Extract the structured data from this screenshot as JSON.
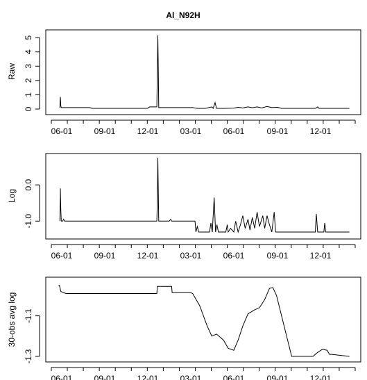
{
  "chart_data": [
    {
      "type": "line",
      "title": "Al_N92H",
      "ylabel": "Raw",
      "xlabel": "",
      "x_ticks": [
        "06-01",
        "09-01",
        "12-01",
        "03-01",
        "06-01",
        "09-01",
        "12-01"
      ],
      "y_ticks": [
        "0",
        "1",
        "2",
        "3",
        "4",
        "5"
      ],
      "ylim": [
        0,
        5.2
      ],
      "series": [
        {
          "points": [
            [
              "05-28",
              0.1
            ],
            [
              "05-29",
              0.85
            ],
            [
              "05-30",
              0.2
            ],
            [
              "05-31",
              0.1
            ],
            [
              "06-10",
              0.1
            ],
            [
              "07-31",
              0.1
            ],
            [
              "08-05",
              0.05
            ],
            [
              "08-20",
              0.05
            ],
            [
              "10-10",
              0.05
            ],
            [
              "11-30",
              0.05
            ],
            [
              "12-05",
              0.15
            ],
            [
              "12-15",
              0.15
            ],
            [
              "12-20",
              0.15
            ],
            [
              "12-21",
              2.7
            ],
            [
              "12-22",
              5.15
            ],
            [
              "12-23",
              2.7
            ],
            [
              "12-24",
              0.1
            ],
            [
              "12-27",
              0.1
            ],
            [
              "01-20",
              0.1
            ],
            [
              "02-10",
              0.1
            ],
            [
              "03-05",
              0.1
            ],
            [
              "03-15",
              0.05
            ],
            [
              "04-01",
              0.05
            ],
            [
              "04-15",
              0.15
            ],
            [
              "04-18",
              0.05
            ],
            [
              "04-22",
              0.45
            ],
            [
              "04-25",
              0.05
            ],
            [
              "05-10",
              0.05
            ],
            [
              "06-01",
              0.07
            ],
            [
              "06-10",
              0.12
            ],
            [
              "06-20",
              0.08
            ],
            [
              "07-01",
              0.15
            ],
            [
              "07-10",
              0.09
            ],
            [
              "07-20",
              0.15
            ],
            [
              "07-30",
              0.08
            ],
            [
              "08-10",
              0.18
            ],
            [
              "08-20",
              0.1
            ],
            [
              "09-01",
              0.12
            ],
            [
              "09-10",
              0.05
            ],
            [
              "10-01",
              0.05
            ],
            [
              "11-20",
              0.05
            ],
            [
              "11-25",
              0.15
            ],
            [
              "11-28",
              0.05
            ],
            [
              "12-31",
              0.05
            ],
            [
              "01-31",
              0.05
            ]
          ]
        }
      ]
    },
    {
      "type": "line",
      "title": "",
      "ylabel": "Log",
      "xlabel": "",
      "x_ticks": [
        "06-01",
        "09-01",
        "12-01",
        "03-01",
        "06-01",
        "09-01",
        "12-01"
      ],
      "y_ticks": [
        "-1.0",
        "0.0"
      ],
      "ylim": [
        -1.32,
        0.75
      ],
      "series": [
        {
          "points": [
            [
              "05-28",
              -1.0
            ],
            [
              "05-29",
              -0.35
            ],
            [
              "05-29",
              -0.1
            ],
            [
              "05-30",
              -0.7
            ],
            [
              "05-31",
              -1.0
            ],
            [
              "06-03",
              -1.0
            ],
            [
              "06-05",
              -0.95
            ],
            [
              "06-07",
              -1.0
            ],
            [
              "06-10",
              -1.0
            ],
            [
              "12-20",
              -1.0
            ],
            [
              "12-21",
              -0.45
            ],
            [
              "12-22",
              0.75
            ],
            [
              "12-23",
              -0.2
            ],
            [
              "12-24",
              -1.0
            ],
            [
              "01-15",
              -1.0
            ],
            [
              "01-18",
              -0.95
            ],
            [
              "01-20",
              -1.0
            ],
            [
              "03-10",
              -1.0
            ],
            [
              "03-12",
              -1.3
            ],
            [
              "03-15",
              -1.15
            ],
            [
              "03-18",
              -1.3
            ],
            [
              "04-10",
              -1.3
            ],
            [
              "04-13",
              -1.05
            ],
            [
              "04-16",
              -1.3
            ],
            [
              "04-20",
              -0.35
            ],
            [
              "04-23",
              -1.3
            ],
            [
              "04-26",
              -1.1
            ],
            [
              "04-29",
              -1.3
            ],
            [
              "05-15",
              -1.3
            ],
            [
              "05-18",
              -1.1
            ],
            [
              "05-20",
              -1.3
            ],
            [
              "05-25",
              -1.2
            ],
            [
              "06-01",
              -1.3
            ],
            [
              "06-05",
              -1.0
            ],
            [
              "06-10",
              -1.3
            ],
            [
              "06-15",
              -1.1
            ],
            [
              "06-20",
              -0.85
            ],
            [
              "06-25",
              -1.2
            ],
            [
              "07-01",
              -0.95
            ],
            [
              "07-05",
              -1.25
            ],
            [
              "07-10",
              -0.9
            ],
            [
              "07-15",
              -1.2
            ],
            [
              "07-20",
              -0.75
            ],
            [
              "07-25",
              -1.15
            ],
            [
              "08-01",
              -0.85
            ],
            [
              "08-05",
              -1.2
            ],
            [
              "08-10",
              -0.85
            ],
            [
              "08-15",
              -1.1
            ],
            [
              "08-20",
              -1.3
            ],
            [
              "08-25",
              -0.75
            ],
            [
              "08-28",
              -1.3
            ],
            [
              "09-15",
              -1.3
            ],
            [
              "11-20",
              -1.3
            ],
            [
              "11-22",
              -0.8
            ],
            [
              "11-25",
              -1.3
            ],
            [
              "12-08",
              -1.3
            ],
            [
              "12-10",
              -1.05
            ],
            [
              "12-12",
              -1.3
            ],
            [
              "01-31",
              -1.3
            ]
          ]
        }
      ]
    },
    {
      "type": "line",
      "title": "",
      "ylabel": "30-obs avg log",
      "xlabel": "",
      "x_ticks": [
        "06-01",
        "09-01",
        "12-01",
        "03-01",
        "06-01",
        "09-01",
        "12-01"
      ],
      "y_ticks": [
        "-1.3",
        "-1.1"
      ],
      "ylim": [
        -1.3,
        -0.93
      ],
      "series": [
        {
          "points": [
            [
              "05-25",
              -0.95
            ],
            [
              "05-27",
              -0.95
            ],
            [
              "05-30",
              -0.98
            ],
            [
              "06-10",
              -0.99
            ],
            [
              "12-20",
              -0.99
            ],
            [
              "12-21",
              -0.955
            ],
            [
              "01-20",
              -0.955
            ],
            [
              "01-21",
              -0.985
            ],
            [
              "02-28",
              -0.985
            ],
            [
              "03-05",
              -0.99
            ],
            [
              "03-20",
              -1.05
            ],
            [
              "04-05",
              -1.15
            ],
            [
              "04-15",
              -1.2
            ],
            [
              "04-25",
              -1.19
            ],
            [
              "05-10",
              -1.22
            ],
            [
              "05-20",
              -1.26
            ],
            [
              "06-01",
              -1.27
            ],
            [
              "06-10",
              -1.22
            ],
            [
              "06-20",
              -1.15
            ],
            [
              "07-01",
              -1.09
            ],
            [
              "07-15",
              -1.07
            ],
            [
              "07-25",
              -1.06
            ],
            [
              "08-05",
              -1.02
            ],
            [
              "08-15",
              -0.965
            ],
            [
              "08-22",
              -0.96
            ],
            [
              "08-30",
              -1.0
            ],
            [
              "09-15",
              -1.15
            ],
            [
              "10-01",
              -1.3
            ],
            [
              "11-15",
              -1.3
            ],
            [
              "11-25",
              -1.28
            ],
            [
              "12-05",
              -1.265
            ],
            [
              "12-15",
              -1.27
            ],
            [
              "12-20",
              -1.29
            ],
            [
              "12-25",
              -1.29
            ],
            [
              "01-31",
              -1.3
            ]
          ]
        }
      ]
    }
  ]
}
